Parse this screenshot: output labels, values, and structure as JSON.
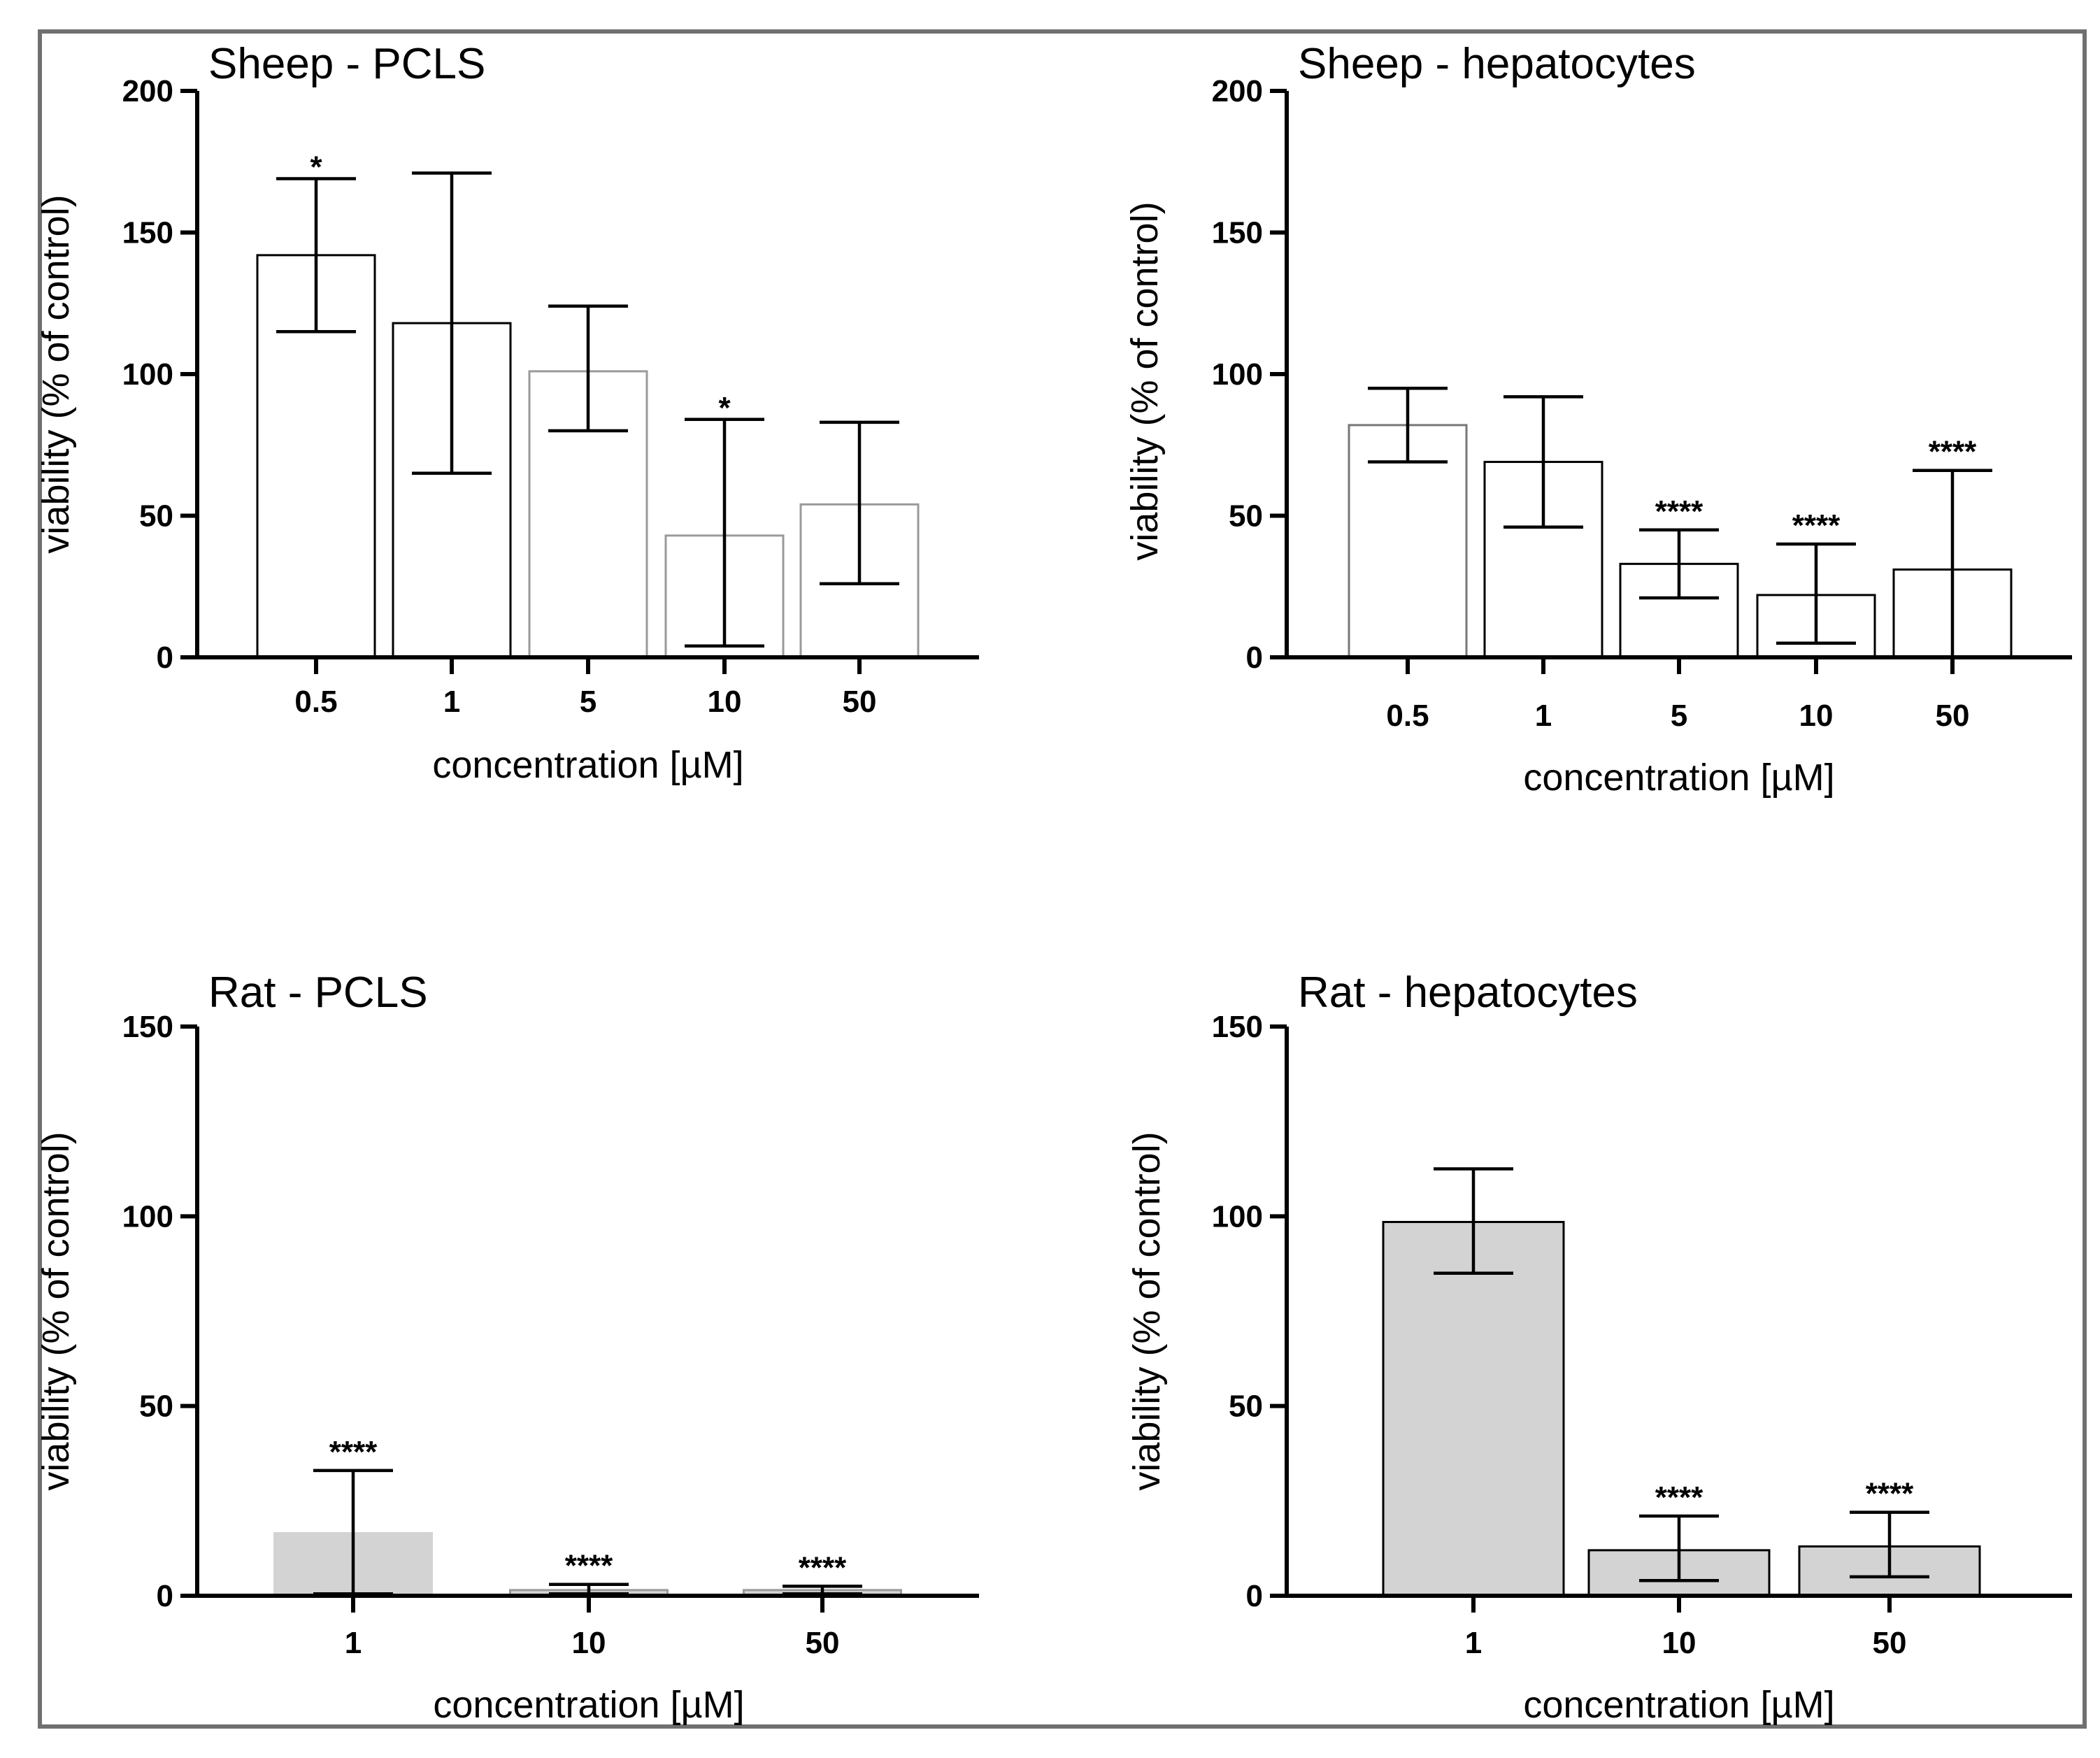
{
  "chart_data": [
    {
      "type": "bar",
      "title": "Sheep - PCLS",
      "xlabel": "concentration [µM]",
      "ylabel": "viability (% of control)",
      "ylim": [
        0,
        200
      ],
      "yticks": [
        0,
        50,
        100,
        150,
        200
      ],
      "categories": [
        "0.5",
        "1",
        "5",
        "10",
        "50"
      ],
      "values": [
        142,
        118,
        101,
        43,
        54
      ],
      "error_low": [
        115,
        65,
        80,
        4,
        26
      ],
      "error_high": [
        169,
        171,
        124,
        84,
        83
      ],
      "significance": [
        "*",
        "",
        "",
        "*",
        ""
      ],
      "bar_fill": "#ffffff",
      "bar_stroke": [
        "#000000",
        "#000000",
        "#9a9a9a",
        "#9a9a9a",
        "#9a9a9a"
      ]
    },
    {
      "type": "bar",
      "title": "Sheep - hepatocytes",
      "xlabel": "concentration [µM]",
      "ylabel": "viability (% of control)",
      "ylim": [
        0,
        200
      ],
      "yticks": [
        0,
        50,
        100,
        150,
        200
      ],
      "categories": [
        "0.5",
        "1",
        "5",
        "10",
        "50"
      ],
      "values": [
        82,
        69,
        33,
        22,
        31
      ],
      "error_low": [
        69,
        46,
        21,
        5,
        0
      ],
      "error_high": [
        95,
        92,
        45,
        40,
        66
      ],
      "significance": [
        "",
        "",
        "****",
        "****",
        "****"
      ],
      "bar_fill": "#ffffff",
      "bar_stroke": [
        "#777777",
        "#000000",
        "#000000",
        "#000000",
        "#000000"
      ]
    },
    {
      "type": "bar",
      "title": "Rat - PCLS",
      "xlabel": "concentration [µM]",
      "ylabel": "viability (% of control)",
      "ylim": [
        0,
        150
      ],
      "yticks": [
        0,
        50,
        100,
        150
      ],
      "categories": [
        "1",
        "10",
        "50"
      ],
      "values": [
        16.5,
        1.5,
        1.5
      ],
      "error_low": [
        0.5,
        0.5,
        0.5
      ],
      "error_high": [
        33,
        3,
        2.5
      ],
      "significance": [
        "****",
        "****",
        "****"
      ],
      "bar_fill": "#d3d3d3",
      "bar_stroke": [
        "#d3d3d3",
        "#9a9a9a",
        "#9a9a9a"
      ]
    },
    {
      "type": "bar",
      "title": "Rat - hepatocytes",
      "xlabel": "concentration [µM]",
      "ylabel": "viability (% of control)",
      "ylim": [
        0,
        150
      ],
      "yticks": [
        0,
        50,
        100,
        150
      ],
      "categories": [
        "1",
        "10",
        "50"
      ],
      "values": [
        98.5,
        12,
        13
      ],
      "error_low": [
        85,
        4,
        5
      ],
      "error_high": [
        112.5,
        21,
        22
      ],
      "significance": [
        "",
        "****",
        "****"
      ],
      "bar_fill": "#d3d3d3",
      "bar_stroke": [
        "#000000",
        "#000000",
        "#000000"
      ]
    }
  ]
}
